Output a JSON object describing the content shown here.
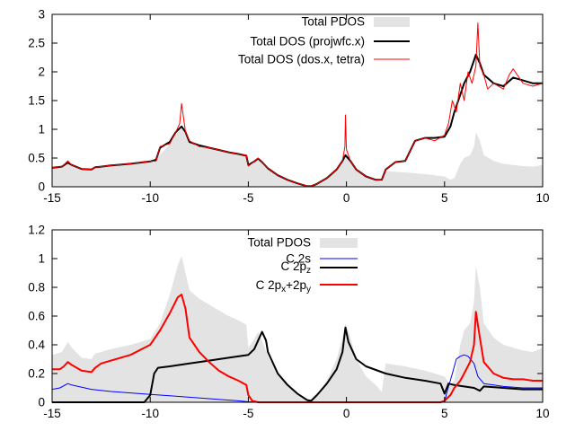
{
  "chart_data": [
    {
      "type": "area",
      "xlim": [
        -15,
        10
      ],
      "ylim": [
        0,
        3
      ],
      "xticks": [
        -15,
        -10,
        -5,
        0,
        5,
        10
      ],
      "yticks": [
        0,
        0.5,
        1,
        1.5,
        2,
        2.5,
        3
      ],
      "ytick_labels": [
        "0",
        "0.5",
        "1",
        "1.5",
        "2",
        "2.5",
        "3"
      ],
      "grid": false,
      "legend_position": "top-right",
      "legend": [
        {
          "key": "pdos",
          "label": "Total PDOS"
        },
        {
          "key": "projwfc",
          "label": "Total DOS (projwfc.x)"
        },
        {
          "key": "dosx",
          "label": "Total DOS (dos.x, tetra)"
        }
      ],
      "series": [
        {
          "key": "pdos",
          "name": "Total PDOS",
          "style": "filled",
          "color": "#e3e3e3",
          "x": [
            -15,
            -14.5,
            -14.2,
            -14.0,
            -13.5,
            -13.0,
            -12.8,
            -12.5,
            -12.0,
            -11.0,
            -10.0,
            -9.5,
            -9.0,
            -8.6,
            -8.4,
            -8.2,
            -8.0,
            -7.5,
            -7.0,
            -6.5,
            -6.0,
            -5.5,
            -5.1,
            -5.0,
            -4.7,
            -4.5,
            -4.3,
            -4.0,
            -3.5,
            -3.0,
            -2.5,
            -2.0,
            -1.8,
            -1.5,
            -1.0,
            -0.5,
            -0.2,
            -0.05,
            0.2,
            0.5,
            1.0,
            1.5,
            1.8,
            2.0,
            2.5,
            3.0,
            4.0,
            4.5,
            5.0,
            5.3,
            5.5,
            5.8,
            6.0,
            6.3,
            6.5,
            6.6,
            6.8,
            7.0,
            7.5,
            8.0,
            8.5,
            9.0,
            9.5,
            10.0
          ],
          "y": [
            0.33,
            0.35,
            0.42,
            0.38,
            0.31,
            0.3,
            0.34,
            0.35,
            0.37,
            0.4,
            0.44,
            0.55,
            0.75,
            0.95,
            1.02,
            0.9,
            0.78,
            0.72,
            0.68,
            0.64,
            0.6,
            0.57,
            0.54,
            0.38,
            0.44,
            0.49,
            0.43,
            0.32,
            0.2,
            0.12,
            0.06,
            0.01,
            0.01,
            0.05,
            0.15,
            0.3,
            0.45,
            0.55,
            0.45,
            0.3,
            0.18,
            0.12,
            0.07,
            0.27,
            0.26,
            0.25,
            0.22,
            0.2,
            0.18,
            0.12,
            0.15,
            0.4,
            0.5,
            0.55,
            0.7,
            0.95,
            0.8,
            0.55,
            0.45,
            0.4,
            0.38,
            0.36,
            0.35,
            0.38
          ]
        },
        {
          "key": "projwfc",
          "name": "Total DOS (projwfc.x)",
          "style": "line",
          "color": "#000000",
          "x": [
            -15,
            -14.5,
            -14.2,
            -14.0,
            -13.5,
            -13.0,
            -12.8,
            -12.5,
            -12.0,
            -11.0,
            -10.0,
            -9.7,
            -9.5,
            -9.0,
            -8.7,
            -8.4,
            -8.2,
            -8.0,
            -7.5,
            -7.0,
            -6.5,
            -6.0,
            -5.5,
            -5.1,
            -5.0,
            -4.7,
            -4.5,
            -4.3,
            -4.0,
            -3.5,
            -3.0,
            -2.5,
            -2.0,
            -1.8,
            -1.5,
            -1.0,
            -0.5,
            -0.2,
            -0.05,
            0.2,
            0.5,
            1.0,
            1.5,
            1.8,
            2.0,
            2.5,
            3.0,
            3.5,
            4.0,
            4.5,
            5.0,
            5.3,
            5.5,
            5.8,
            6.0,
            6.3,
            6.5,
            6.6,
            6.8,
            7.0,
            7.5,
            8.0,
            8.5,
            9.0,
            9.5,
            10.0
          ],
          "y": [
            0.33,
            0.35,
            0.42,
            0.38,
            0.31,
            0.3,
            0.34,
            0.35,
            0.37,
            0.4,
            0.44,
            0.47,
            0.68,
            0.78,
            0.95,
            1.05,
            0.95,
            0.78,
            0.72,
            0.68,
            0.64,
            0.6,
            0.57,
            0.54,
            0.38,
            0.44,
            0.49,
            0.43,
            0.32,
            0.2,
            0.12,
            0.06,
            0.01,
            0.01,
            0.05,
            0.15,
            0.3,
            0.45,
            0.55,
            0.45,
            0.3,
            0.18,
            0.12,
            0.12,
            0.3,
            0.43,
            0.45,
            0.8,
            0.85,
            0.85,
            0.87,
            1.05,
            1.3,
            1.6,
            1.8,
            2.0,
            2.2,
            2.3,
            2.15,
            1.95,
            1.8,
            1.75,
            1.9,
            1.85,
            1.8,
            1.8
          ]
        },
        {
          "key": "dosx",
          "name": "Total DOS (dos.x, tetra)",
          "style": "line",
          "color": "#ff0000",
          "x": [
            -15,
            -14.5,
            -14.2,
            -14.0,
            -13.5,
            -13.0,
            -12.8,
            -12.5,
            -12.0,
            -11.0,
            -10.0,
            -9.7,
            -9.5,
            -9.0,
            -8.7,
            -8.5,
            -8.4,
            -8.3,
            -8.2,
            -8.0,
            -7.5,
            -7.0,
            -6.5,
            -6.0,
            -5.5,
            -5.1,
            -5.0,
            -4.7,
            -4.5,
            -4.3,
            -4.0,
            -3.5,
            -3.0,
            -2.5,
            -2.0,
            -1.8,
            -1.5,
            -1.0,
            -0.5,
            -0.2,
            -0.08,
            -0.05,
            0.0,
            0.2,
            0.5,
            1.0,
            1.5,
            1.8,
            2.0,
            2.5,
            3.0,
            3.5,
            4.0,
            4.5,
            5.0,
            5.2,
            5.4,
            5.6,
            5.8,
            6.0,
            6.2,
            6.4,
            6.6,
            6.7,
            6.8,
            7.0,
            7.2,
            7.5,
            8.0,
            8.3,
            8.5,
            9.0,
            9.5,
            10.0
          ],
          "y": [
            0.33,
            0.35,
            0.45,
            0.38,
            0.31,
            0.3,
            0.34,
            0.35,
            0.37,
            0.4,
            0.44,
            0.45,
            0.7,
            0.75,
            0.95,
            1.1,
            1.45,
            1.2,
            0.95,
            0.8,
            0.7,
            0.68,
            0.64,
            0.6,
            0.57,
            0.55,
            0.36,
            0.44,
            0.5,
            0.43,
            0.32,
            0.2,
            0.12,
            0.06,
            0.01,
            0.01,
            0.05,
            0.15,
            0.3,
            0.45,
            0.7,
            1.25,
            0.65,
            0.45,
            0.3,
            0.18,
            0.12,
            0.12,
            0.3,
            0.43,
            0.45,
            0.8,
            0.85,
            0.8,
            0.9,
            1.1,
            1.5,
            1.3,
            1.8,
            1.5,
            2.0,
            1.8,
            2.1,
            2.85,
            2.1,
            1.95,
            1.7,
            1.8,
            1.7,
            1.95,
            2.05,
            1.8,
            1.75,
            1.8
          ]
        }
      ]
    },
    {
      "type": "area",
      "xlim": [
        -15,
        10
      ],
      "ylim": [
        0,
        1.2
      ],
      "xticks": [
        -15,
        -10,
        -5,
        0,
        5,
        10
      ],
      "yticks": [
        0,
        0.2,
        0.4,
        0.6,
        0.8,
        1,
        1.2
      ],
      "ytick_labels": [
        "0",
        "0.2",
        "0.4",
        "0.6",
        "0.8",
        "1",
        "1.2"
      ],
      "grid": false,
      "legend_position": "top-center",
      "legend": [
        {
          "key": "pdos",
          "label": "Total PDOS"
        },
        {
          "key": "c2s",
          "label": "C 2s"
        },
        {
          "key": "c2pz",
          "label": "C 2pz"
        },
        {
          "key": "c2pxy",
          "label": "C 2px+2py"
        }
      ],
      "series": [
        {
          "key": "pdos",
          "name": "Total PDOS",
          "style": "filled",
          "color": "#e3e3e3",
          "x": [
            -15,
            -14.5,
            -14.2,
            -14.0,
            -13.5,
            -13.0,
            -12.8,
            -12.5,
            -12.0,
            -11.0,
            -10.0,
            -9.5,
            -9.0,
            -8.6,
            -8.4,
            -8.2,
            -8.0,
            -7.5,
            -7.0,
            -6.5,
            -6.0,
            -5.5,
            -5.1,
            -5.0,
            -4.7,
            -4.5,
            -4.3,
            -4.0,
            -3.5,
            -3.0,
            -2.5,
            -2.0,
            -1.8,
            -1.5,
            -1.0,
            -0.5,
            -0.2,
            -0.05,
            0.2,
            0.5,
            1.0,
            1.5,
            1.8,
            2.0,
            2.5,
            3.0,
            4.0,
            4.5,
            5.0,
            5.3,
            5.5,
            5.8,
            6.0,
            6.3,
            6.5,
            6.6,
            6.8,
            7.0,
            7.5,
            8.0,
            8.5,
            9.0,
            9.5,
            10.0
          ],
          "y": [
            0.33,
            0.35,
            0.42,
            0.38,
            0.31,
            0.3,
            0.34,
            0.35,
            0.37,
            0.4,
            0.44,
            0.55,
            0.75,
            0.95,
            1.02,
            0.9,
            0.78,
            0.72,
            0.68,
            0.64,
            0.6,
            0.57,
            0.54,
            0.38,
            0.44,
            0.49,
            0.43,
            0.32,
            0.2,
            0.12,
            0.06,
            0.01,
            0.01,
            0.05,
            0.15,
            0.3,
            0.45,
            0.55,
            0.45,
            0.3,
            0.18,
            0.12,
            0.07,
            0.27,
            0.26,
            0.25,
            0.22,
            0.2,
            0.18,
            0.12,
            0.15,
            0.4,
            0.5,
            0.55,
            0.7,
            0.95,
            0.8,
            0.55,
            0.45,
            0.4,
            0.38,
            0.36,
            0.35,
            0.38
          ]
        },
        {
          "key": "c2s",
          "name": "C 2s",
          "style": "line",
          "color": "#0000ff",
          "x": [
            -15,
            -14.6,
            -14.2,
            -14.0,
            -13.0,
            -12.0,
            -11.0,
            -10.0,
            -9.0,
            -8.0,
            -7.0,
            -6.0,
            -5.5,
            -5.0,
            -4.0,
            0,
            4.5,
            5.0,
            5.1,
            5.4,
            5.6,
            5.8,
            6.0,
            6.2,
            6.5,
            6.7,
            7.0,
            7.5,
            8.0,
            9.0,
            10.0
          ],
          "y": [
            0.09,
            0.1,
            0.13,
            0.12,
            0.09,
            0.075,
            0.065,
            0.055,
            0.045,
            0.035,
            0.025,
            0.015,
            0.01,
            0.003,
            0,
            0,
            0,
            0,
            0.06,
            0.2,
            0.3,
            0.32,
            0.33,
            0.32,
            0.27,
            0.18,
            0.13,
            0.12,
            0.11,
            0.1,
            0.1
          ]
        },
        {
          "key": "c2pz",
          "name": "C 2pz",
          "style": "line",
          "color": "#000000",
          "x": [
            -15,
            -10.3,
            -10.0,
            -9.8,
            -9.6,
            -9.0,
            -8.0,
            -7.0,
            -6.0,
            -5.0,
            -4.7,
            -4.5,
            -4.3,
            -4.1,
            -4.0,
            -3.5,
            -3.0,
            -2.5,
            -2.0,
            -1.8,
            -1.5,
            -1.0,
            -0.5,
            -0.2,
            -0.05,
            0.1,
            0.5,
            1.0,
            2.0,
            3.0,
            4.0,
            4.8,
            5.0,
            5.2,
            5.5,
            6.0,
            6.5,
            6.8,
            7.0,
            8.0,
            9.0,
            10.0
          ],
          "y": [
            0,
            0,
            0.05,
            0.2,
            0.24,
            0.25,
            0.27,
            0.29,
            0.31,
            0.33,
            0.37,
            0.43,
            0.49,
            0.43,
            0.35,
            0.2,
            0.12,
            0.06,
            0.015,
            0.01,
            0.05,
            0.13,
            0.23,
            0.35,
            0.52,
            0.42,
            0.3,
            0.25,
            0.2,
            0.17,
            0.15,
            0.13,
            0.06,
            0.13,
            0.12,
            0.11,
            0.1,
            0.08,
            0.11,
            0.1,
            0.09,
            0.09
          ]
        },
        {
          "key": "c2pxy",
          "name": "C 2px+2py",
          "style": "line",
          "color": "#ff0000",
          "x": [
            -15,
            -14.6,
            -14.4,
            -14.2,
            -14.0,
            -13.5,
            -13.0,
            -12.8,
            -12.5,
            -12.0,
            -11.0,
            -10.0,
            -9.5,
            -9.0,
            -8.6,
            -8.4,
            -8.2,
            -8.0,
            -7.5,
            -7.0,
            -6.5,
            -6.0,
            -5.5,
            -5.1,
            -5.0,
            -4.8,
            -4.5,
            -4.0,
            0,
            4.8,
            5.0,
            5.3,
            5.5,
            5.8,
            6.0,
            6.3,
            6.5,
            6.6,
            6.8,
            7.0,
            7.5,
            8.0,
            8.5,
            9.0,
            9.5,
            10.0
          ],
          "y": [
            0.23,
            0.23,
            0.25,
            0.28,
            0.26,
            0.22,
            0.21,
            0.24,
            0.27,
            0.29,
            0.33,
            0.4,
            0.5,
            0.62,
            0.73,
            0.75,
            0.65,
            0.45,
            0.35,
            0.28,
            0.22,
            0.18,
            0.15,
            0.12,
            0.05,
            0.01,
            0,
            0,
            0,
            0,
            0.01,
            0.05,
            0.1,
            0.15,
            0.2,
            0.28,
            0.4,
            0.63,
            0.45,
            0.28,
            0.2,
            0.17,
            0.16,
            0.16,
            0.15,
            0.15
          ]
        }
      ]
    }
  ],
  "panels_meta": [
    {
      "xtick_labels": [
        "-15",
        "-10",
        "-5",
        "0",
        "5",
        "10"
      ],
      "legend_labels": [
        "Total PDOS",
        "Total DOS (projwfc.x)",
        "Total DOS (dos.x, tetra)"
      ]
    },
    {
      "xtick_labels": [
        "-15",
        "-10",
        "-5",
        "0",
        "5",
        "10"
      ],
      "legend_labels": [
        "Total PDOS",
        "C 2s",
        "C 2p",
        "z",
        "C 2p",
        "x",
        "+2p",
        "y"
      ]
    }
  ]
}
